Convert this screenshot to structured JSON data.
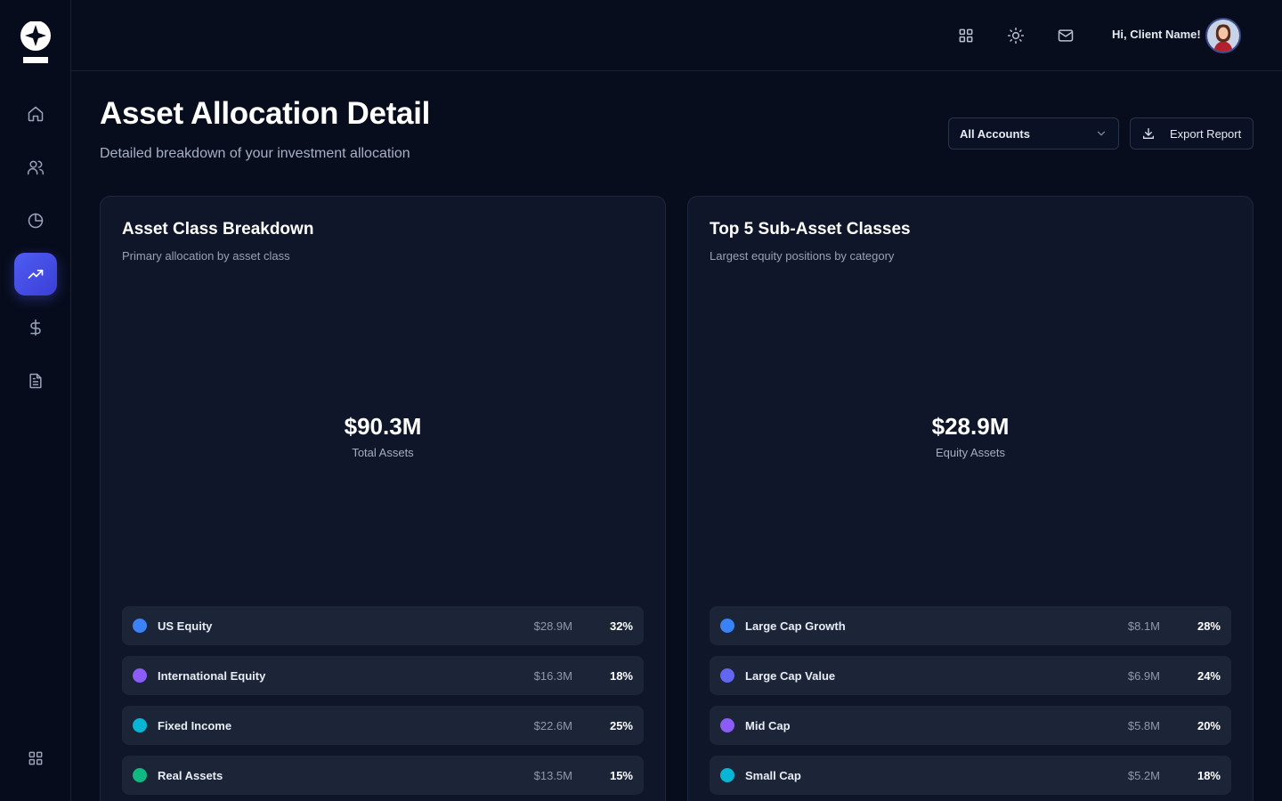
{
  "header": {
    "greeting": "Hi, Client Name!",
    "title": "Asset Allocation Detail",
    "subtitle": "Detailed breakdown of your investment allocation",
    "account_select": "All Accounts",
    "export_label": "Export Report"
  },
  "sidebar": {
    "items": [
      {
        "icon": "home-icon"
      },
      {
        "icon": "users-icon"
      },
      {
        "icon": "pie-chart-icon"
      },
      {
        "icon": "trending-up-icon",
        "active": true
      },
      {
        "icon": "dollar-icon"
      },
      {
        "icon": "document-icon"
      }
    ],
    "bottom_icon": "grid-icon"
  },
  "topbar": {
    "icons": [
      "grid-icon",
      "sun-icon",
      "mail-icon"
    ]
  },
  "cards": {
    "asset_class": {
      "title": "Asset Class Breakdown",
      "subtitle": "Primary allocation by asset class",
      "total": "$90.3M",
      "total_label": "Total Assets",
      "items": [
        {
          "name": "US Equity",
          "amount": "$28.9M",
          "pct": "32%",
          "color": "#3b82f6"
        },
        {
          "name": "International Equity",
          "amount": "$16.3M",
          "pct": "18%",
          "color": "#8b5cf6"
        },
        {
          "name": "Fixed Income",
          "amount": "$22.6M",
          "pct": "25%",
          "color": "#06b6d4"
        },
        {
          "name": "Real Assets",
          "amount": "$13.5M",
          "pct": "15%",
          "color": "#10b981"
        }
      ]
    },
    "sub_asset": {
      "title": "Top 5 Sub-Asset Classes",
      "subtitle": "Largest equity positions by category",
      "total": "$28.9M",
      "total_label": "Equity Assets",
      "items": [
        {
          "name": "Large Cap Growth",
          "amount": "$8.1M",
          "pct": "28%",
          "color": "#3b82f6"
        },
        {
          "name": "Large Cap Value",
          "amount": "$6.9M",
          "pct": "24%",
          "color": "#6366f1"
        },
        {
          "name": "Mid Cap",
          "amount": "$5.8M",
          "pct": "20%",
          "color": "#8b5cf6"
        },
        {
          "name": "Small Cap",
          "amount": "$5.2M",
          "pct": "18%",
          "color": "#06b6d4"
        }
      ]
    }
  }
}
